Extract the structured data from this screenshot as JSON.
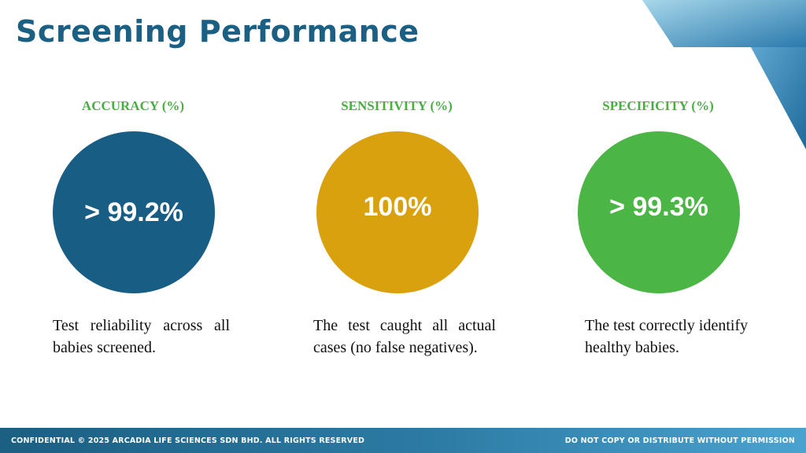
{
  "title": "Screening Performance",
  "metrics": [
    {
      "heading": "ACCURACY (%)",
      "value": "> 99.2%",
      "description": "Test reliability across all babies screened.",
      "color": "#185d83"
    },
    {
      "heading": "SENSITIVITY (%)",
      "value": "100%",
      "description": "The test caught all actual cases (no false negatives).",
      "color": "#d9a10e"
    },
    {
      "heading": "SPECIFICITY (%)",
      "value": "> 99.3%",
      "description": "The test correctly identify healthy babies.",
      "color": "#4bb546"
    }
  ],
  "footer": {
    "left": "CONFIDENTIAL © 2025 ARCADIA LIFE SCIENCES SDN BHD. ALL RIGHTS RESERVED",
    "right": "DO NOT COPY OR DISTRIBUTE WITHOUT PERMISSION"
  },
  "colors": {
    "title": "#1b5f82",
    "heading": "#4aae45"
  }
}
